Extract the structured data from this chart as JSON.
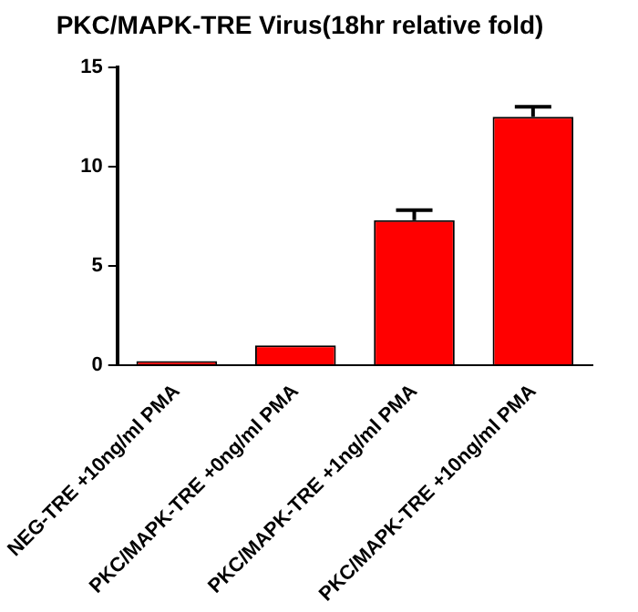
{
  "chart_data": {
    "type": "bar",
    "title": "PKC/MAPK-TRE Virus(18hr relative fold)",
    "categories": [
      "NEG-TRE +10ng/ml PMA",
      "PKC/MAPK-TRE +0ng/ml PMA",
      "PKC/MAPK-TRE +1ng/ml PMA",
      "PKC/MAPK-TRE +10ng/ml PMA"
    ],
    "values": [
      0.2,
      1.0,
      7.3,
      12.5
    ],
    "errors": [
      null,
      null,
      0.5,
      0.5
    ],
    "color": "#ff0000",
    "ylim": [
      0,
      15
    ],
    "yticks": [
      0,
      5,
      10,
      15
    ],
    "grid": false
  }
}
